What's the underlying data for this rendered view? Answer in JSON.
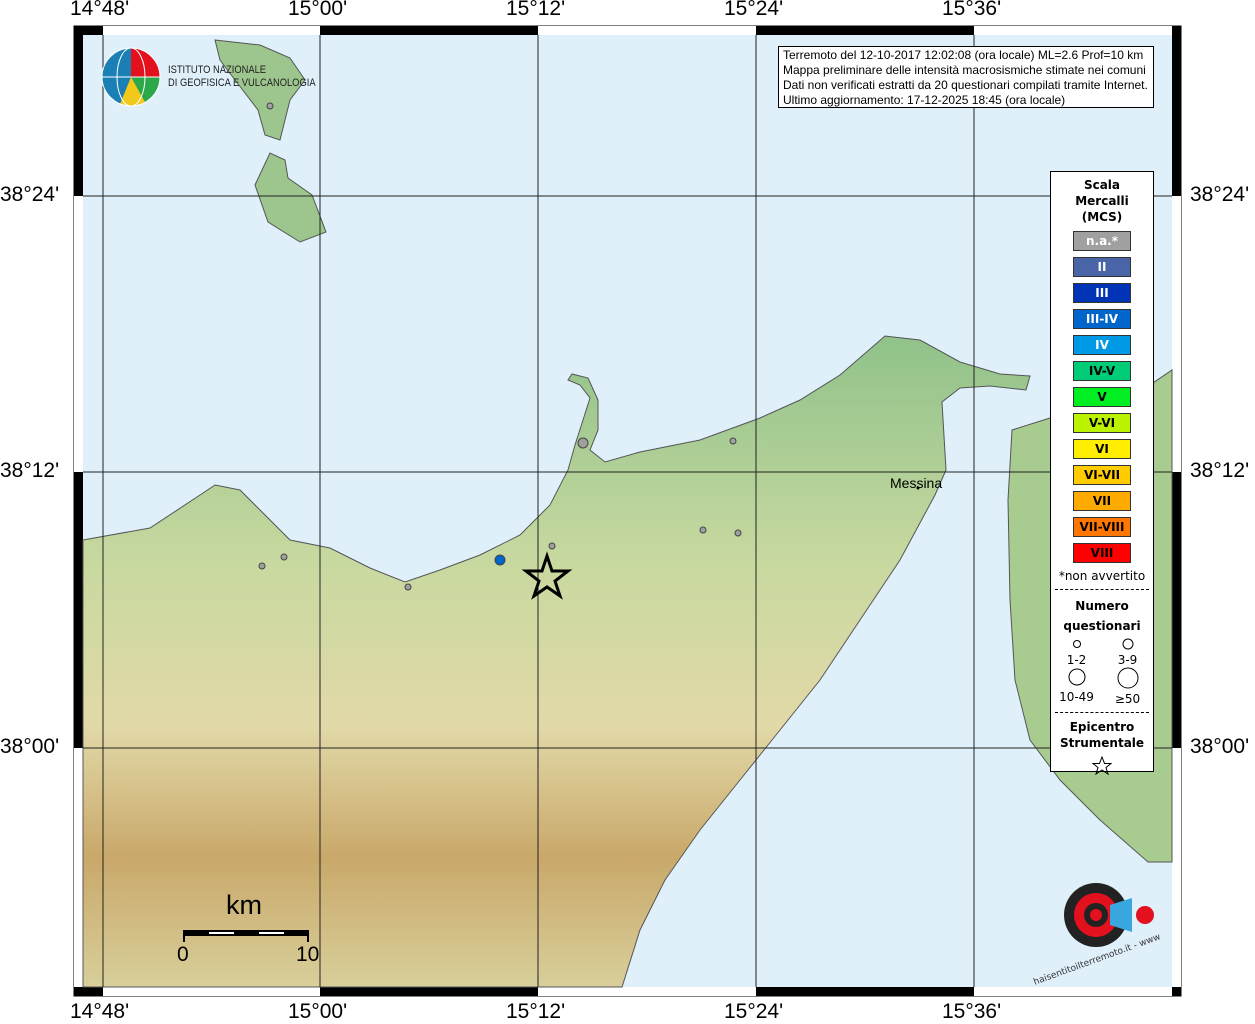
{
  "axes": {
    "lon_labels": [
      "14°48'",
      "15°00'",
      "15°12'",
      "15°24'",
      "15°36'"
    ],
    "lat_labels": [
      "38°24'",
      "38°12'",
      "38°00'"
    ]
  },
  "logo": {
    "ingv_line1": "ISTITUTO NAZIONALE",
    "ingv_line2": "DI GEOFISICA E VULCANOLOGIA",
    "hst": "haisentitoilterremoto.it - www"
  },
  "info": {
    "line1": "Terremoto del 12-10-2017 12:02:08 (ora locale) ML=2.6 Prof=10 km",
    "line2": "Mappa preliminare delle intensità macrosismiche stimate nei comuni",
    "line3": "Dati non verificati estratti da 20 questionari compilati tramite Internet.",
    "line4": "Ultimo aggiornamento: 17-12-2025 18:45 (ora locale)"
  },
  "legend": {
    "title1": "Scala",
    "title2": "Mercalli",
    "title3": "(MCS)",
    "classes": [
      {
        "label": "n.a.*",
        "color": "#a0a0a0"
      },
      {
        "label": "II",
        "color": "#4a64a8"
      },
      {
        "label": "III",
        "color": "#0033b5"
      },
      {
        "label": "III-IV",
        "color": "#0066cc"
      },
      {
        "label": "IV",
        "color": "#0099e6"
      },
      {
        "label": "IV-V",
        "color": "#00cc77"
      },
      {
        "label": "V",
        "color": "#00ee22"
      },
      {
        "label": "V-VI",
        "color": "#bbf200"
      },
      {
        "label": "VI",
        "color": "#ffee00"
      },
      {
        "label": "VI-VII",
        "color": "#ffcc00"
      },
      {
        "label": "VII",
        "color": "#ffaa00"
      },
      {
        "label": "VII-VIII",
        "color": "#ff7700"
      },
      {
        "label": "VIII",
        "color": "#ff0000"
      }
    ],
    "note": "*non avvertito",
    "count_title1": "Numero",
    "count_title2": "questionari",
    "counts": [
      "1-2",
      "3-9",
      "10-49",
      "≥50"
    ],
    "epi1": "Epicentro",
    "epi2": "Strumentale"
  },
  "map": {
    "city": "Messina",
    "scale_unit": "km",
    "scale_min": "0",
    "scale_max": "10"
  }
}
